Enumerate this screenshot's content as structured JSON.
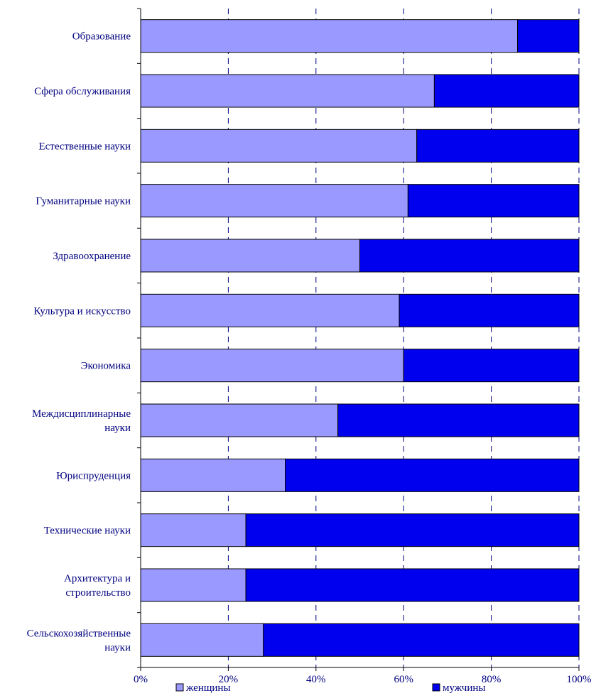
{
  "chart_data": {
    "type": "bar",
    "orientation": "horizontal",
    "stacked": "percent",
    "categories": [
      "Образование",
      "Сфера обслуживания",
      "Естественные науки",
      "Гуманитарные науки",
      "Здравоохранение",
      "Культура и искусство",
      "Экономика",
      "Междисциплинарные науки",
      "Юриспруденция",
      "Технические науки",
      "Архитектура и строительство",
      "Сельскохозяйственные науки"
    ],
    "category_lines": [
      [
        "Образование"
      ],
      [
        "Сфера обслуживания"
      ],
      [
        "Естественные науки"
      ],
      [
        "Гуманитарные науки"
      ],
      [
        "Здравоохранение"
      ],
      [
        "Культура и искусство"
      ],
      [
        "Экономика"
      ],
      [
        "Междисциплинарные",
        "науки"
      ],
      [
        "Юриспруденция"
      ],
      [
        "Технические науки"
      ],
      [
        "Архитектура и",
        "строительство"
      ],
      [
        "Сельскохозяйственные",
        "науки"
      ]
    ],
    "series": [
      {
        "name": "женщины",
        "color": "#9999ff",
        "values": [
          86,
          67,
          63,
          61,
          50,
          59,
          60,
          45,
          33,
          24,
          24,
          28
        ]
      },
      {
        "name": "мужчины",
        "color": "#0000ee",
        "values": [
          14,
          33,
          37,
          39,
          50,
          41,
          40,
          55,
          67,
          76,
          76,
          72
        ]
      }
    ],
    "xlim": [
      0,
      100
    ],
    "x_ticks": [
      "0%",
      "20%",
      "40%",
      "60%",
      "80%",
      "100%"
    ],
    "grid": "vertical dashed",
    "legend_position": "bottom",
    "title": "",
    "xlabel": "",
    "ylabel": ""
  }
}
